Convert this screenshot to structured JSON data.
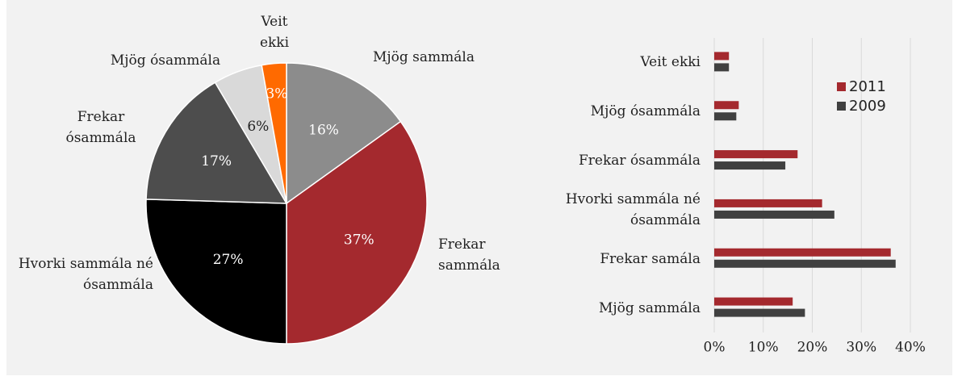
{
  "chart_data": [
    {
      "type": "pie",
      "categories": [
        "Mjög sammála",
        "Frekar sammála",
        "Hvorki sammála né ósammála",
        "Frekar ósammála",
        "Mjög ósammála",
        "Veit ekki"
      ],
      "values": [
        16,
        37,
        27,
        17,
        6,
        3
      ],
      "value_labels": [
        "16%",
        "37%",
        "27%",
        "17%",
        "6%",
        "3%"
      ],
      "colors": [
        "#8c8c8c",
        "#a4292e",
        "#000000",
        "#4d4d4d",
        "#d9d9d9",
        "#ff6a00"
      ]
    },
    {
      "type": "barh",
      "categories": [
        "Veit ekki",
        "Mjög ósammála",
        "Frekar ósammála",
        "Hvorki sammála né ósammála",
        "Frekar samála",
        "Mjög sammála"
      ],
      "series": [
        {
          "name": "2011",
          "color": "#a4292e",
          "values": [
            3,
            5,
            17,
            22,
            36,
            16
          ]
        },
        {
          "name": "2009",
          "color": "#404040",
          "values": [
            3,
            4.5,
            14.5,
            24.5,
            37,
            18.5
          ]
        }
      ],
      "xlim": [
        0,
        40
      ],
      "xticks": [
        {
          "value": 0,
          "label": "0%"
        },
        {
          "value": 10,
          "label": "10%"
        },
        {
          "value": 20,
          "label": "20%"
        },
        {
          "value": 30,
          "label": "30%"
        },
        {
          "value": 40,
          "label": "40%"
        }
      ],
      "grid": true,
      "legend": "upper right"
    }
  ]
}
